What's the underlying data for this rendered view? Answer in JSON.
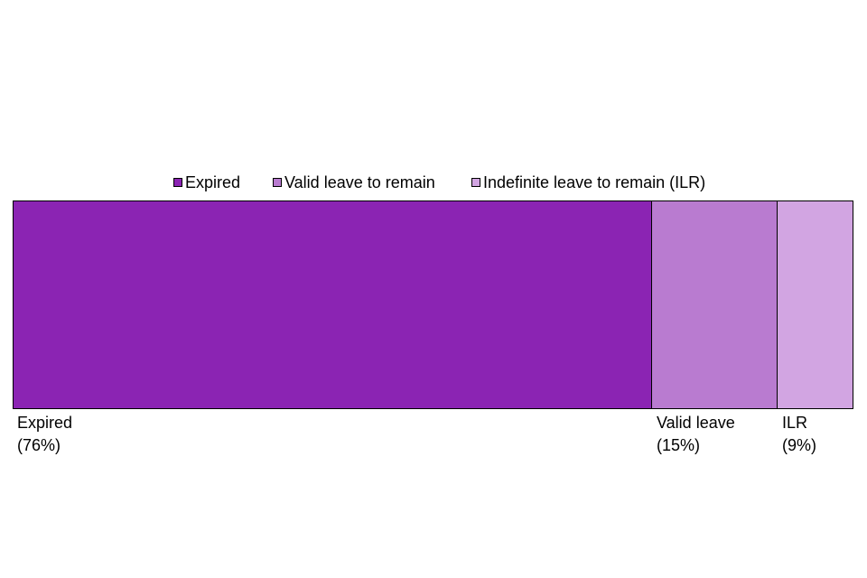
{
  "chart_data": {
    "type": "bar",
    "orientation": "horizontal",
    "stacked": true,
    "title": "",
    "xlabel": "",
    "ylabel": "",
    "legend_position": "top-center",
    "xlim": [
      0,
      100
    ],
    "grid": false,
    "series": [
      {
        "name": "Expired",
        "value": 76,
        "color": "#8b24b3",
        "label": "Expired",
        "pct_label": "(76%)"
      },
      {
        "name": "Valid leave to remain",
        "value": 15,
        "color": "#b97bd0",
        "label": "Valid leave",
        "pct_label": "(15%)"
      },
      {
        "name": "Indefinite leave to remain (ILR)",
        "value": 9,
        "color": "#d2a5e2",
        "label": "ILR",
        "pct_label": "(9%)"
      }
    ]
  }
}
